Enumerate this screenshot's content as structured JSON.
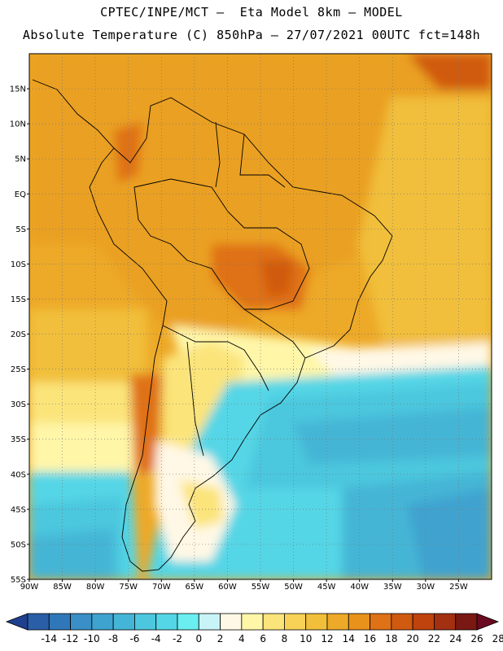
{
  "title_line1": "CPTEC/INPE/MCT –  Eta Model 8km – MODEL",
  "title_line2": "Absolute Temperature (C) 850hPa – 27/07/2021 00UTC fct=148h",
  "map": {
    "lon_range": [
      -90,
      -20
    ],
    "lat_range": [
      -55,
      20
    ],
    "lon_labels": [
      "90W",
      "85W",
      "80W",
      "75W",
      "70W",
      "65W",
      "60W",
      "55W",
      "50W",
      "45W",
      "40W",
      "35W",
      "30W",
      "25W"
    ],
    "lat_labels": [
      "15N",
      "10N",
      "5N",
      "EQ",
      "5S",
      "10S",
      "15S",
      "20S",
      "25S",
      "30S",
      "35S",
      "40S",
      "45S",
      "50S",
      "55S"
    ],
    "grid": "dotted every 5 degrees"
  },
  "colorbar": {
    "labels": [
      "-14",
      "-12",
      "-10",
      "-8",
      "-6",
      "-4",
      "-2",
      "0",
      "2",
      "4",
      "6",
      "8",
      "10",
      "12",
      "14",
      "16",
      "18",
      "20",
      "22",
      "24",
      "26",
      "28"
    ],
    "colors": [
      "#1f3f8f",
      "#2a5ea6",
      "#2f77b8",
      "#3a8fc6",
      "#3fa3cf",
      "#44b5d6",
      "#4cc7de",
      "#55d6e6",
      "#6aeef0",
      "#c8f4f8",
      "#fff8e6",
      "#fff6a8",
      "#fbe47a",
      "#f7d257",
      "#f1bf3a",
      "#eda928",
      "#e8921b",
      "#df7116",
      "#d05a10",
      "#bf430d",
      "#a33010",
      "#7a1814",
      "#6a0a20"
    ]
  }
}
